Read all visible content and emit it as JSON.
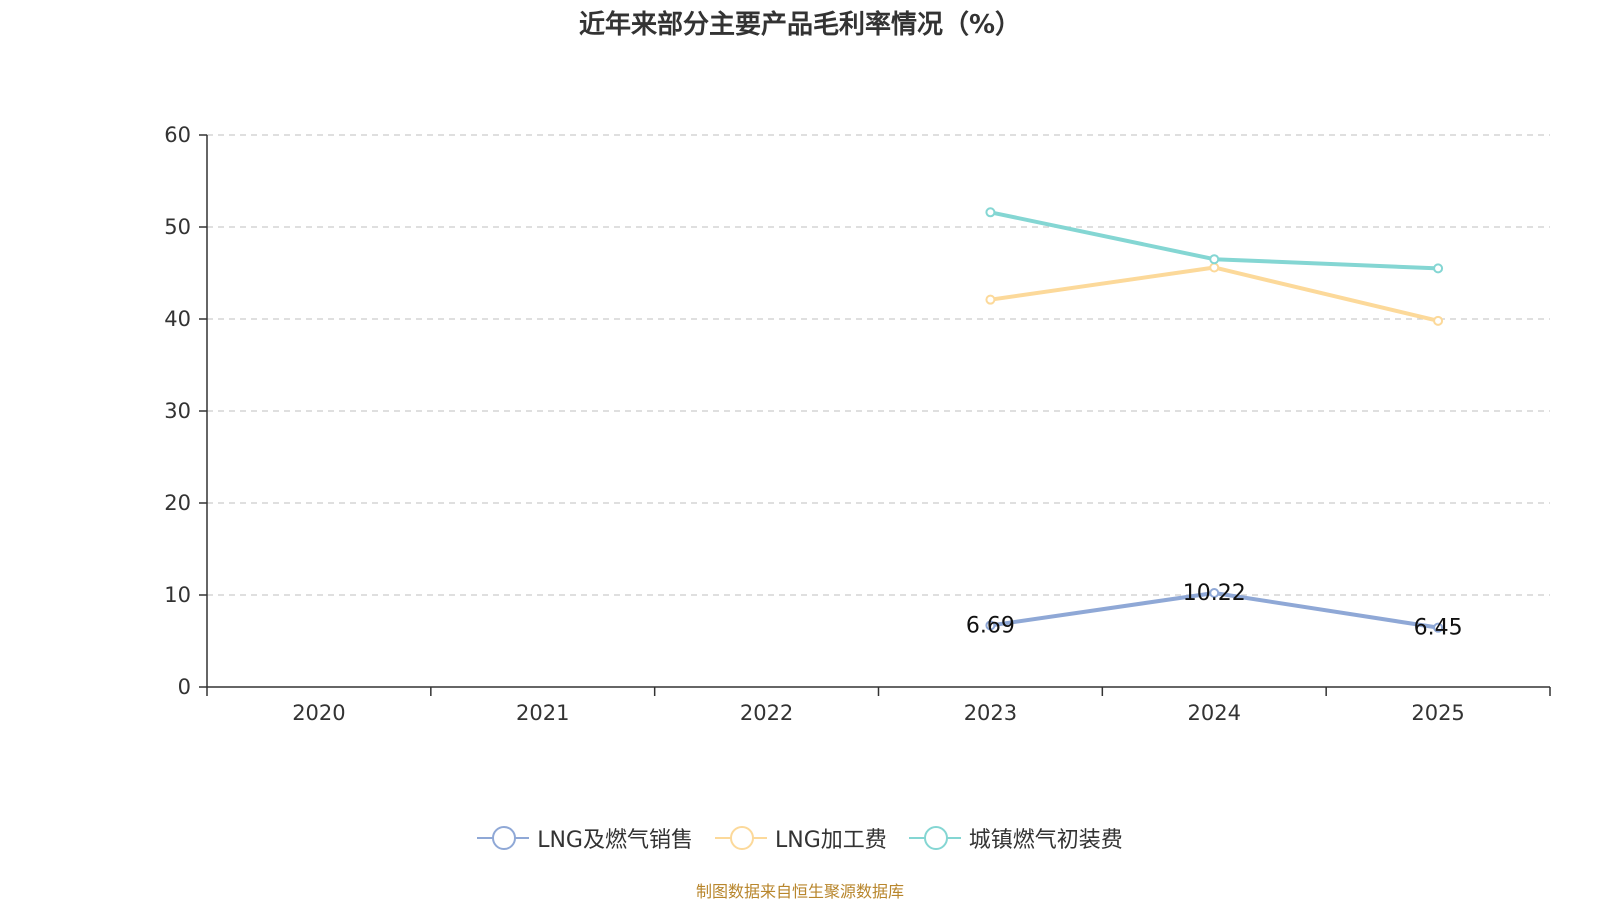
{
  "chart_data": {
    "type": "line",
    "title": "近年来部分主要产品毛利率情况（%）",
    "categories": [
      "2020",
      "2021",
      "2022",
      "2023",
      "2024",
      "2025"
    ],
    "ylim": [
      0,
      60
    ],
    "yticks": [
      0,
      10,
      20,
      30,
      40,
      50,
      60
    ],
    "grid": true,
    "legend_position": "bottom",
    "series": [
      {
        "name": "LNG及燃气销售",
        "color": "#8fa8d6",
        "values": [
          null,
          null,
          null,
          6.69,
          10.22,
          6.45
        ],
        "labels": [
          "",
          "",
          "",
          "6.69",
          "10.22",
          "6.45"
        ]
      },
      {
        "name": "LNG加工费",
        "color": "#fcd99a",
        "values": [
          null,
          null,
          null,
          42.1,
          45.6,
          39.8
        ]
      },
      {
        "name": "城镇燃气初装费",
        "color": "#84d6d3",
        "values": [
          null,
          null,
          null,
          51.6,
          46.5,
          45.5
        ]
      }
    ]
  },
  "source": "制图数据来自恒生聚源数据库"
}
